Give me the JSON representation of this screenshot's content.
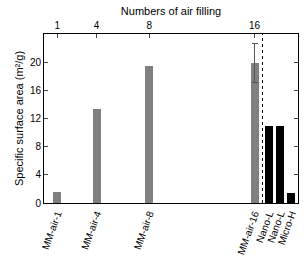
{
  "chart_data": {
    "type": "bar",
    "xlabel": "Numbers of air filling",
    "ylabel": "Specific surface area (m²/g)",
    "categories": [
      "MM-air-1",
      "MM-air-4",
      "MM-air-8",
      "MM-air-16",
      "Nano-L",
      "Nano-L",
      "Micro-H"
    ],
    "x": [
      1,
      4,
      8,
      16,
      null,
      null,
      null
    ],
    "values": [
      1.6,
      13.3,
      19.5,
      19.9,
      11.0,
      10.9,
      1.4
    ],
    "error": [
      null,
      null,
      null,
      2.8,
      null,
      null,
      null
    ],
    "colors": [
      "#808080",
      "#808080",
      "#808080",
      "#808080",
      "#000000",
      "#000000",
      "#000000"
    ],
    "xlim": [
      0,
      19.3
    ],
    "xticks": [
      1,
      4,
      8,
      16
    ],
    "ylim": [
      0,
      24
    ],
    "yticks": [
      0,
      4,
      8,
      12,
      16,
      20
    ],
    "grid": false
  }
}
